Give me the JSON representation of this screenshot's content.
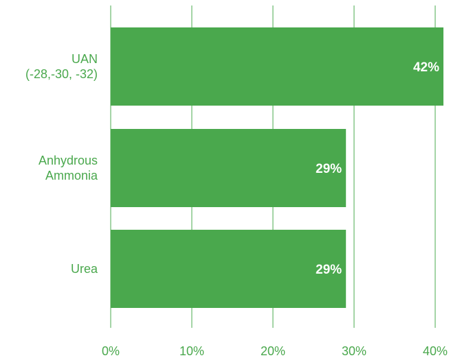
{
  "chart_data": {
    "type": "bar",
    "orientation": "horizontal",
    "categories": [
      [
        "UAN",
        "(-28,-30, -32)"
      ],
      [
        "Anhydrous",
        "Ammonia"
      ],
      [
        "Urea"
      ]
    ],
    "values": [
      42,
      29,
      29
    ],
    "data_labels": [
      "42%",
      "29%",
      "29%"
    ],
    "x_ticks": [
      "0%",
      "10%",
      "20%",
      "30%",
      "40%"
    ],
    "x_tick_values": [
      0,
      10,
      20,
      30,
      40
    ],
    "xlim": [
      0,
      41
    ],
    "grid": "vertical",
    "title": "",
    "xlabel": "",
    "ylabel": ""
  },
  "colors": {
    "bar": "#4aa84d",
    "grid": "#4aa84d",
    "text": "#4aa84d",
    "data_label": "#ffffff"
  }
}
